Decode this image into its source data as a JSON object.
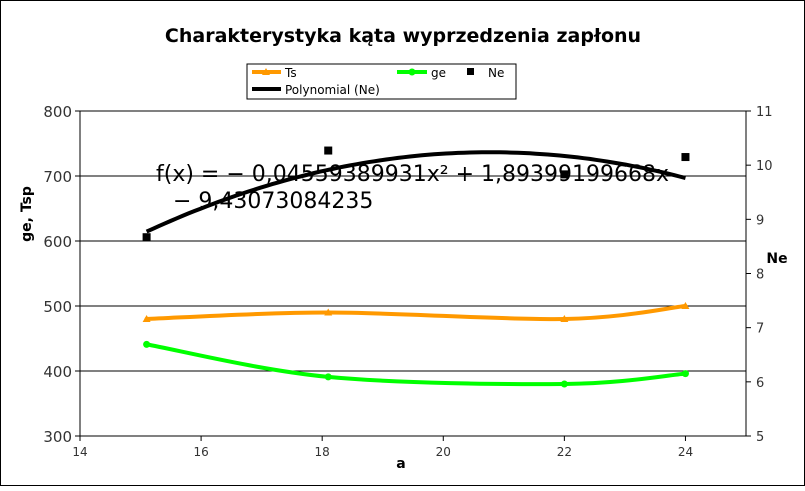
{
  "chart_data": {
    "type": "line",
    "title": "Charakterystyka kąta wyprzedzenia zapłonu",
    "xlabel": "a",
    "ylabel_left": "ge, Tsp",
    "ylabel_right": "Ne",
    "xlim": [
      14,
      25
    ],
    "ylim_left": [
      300,
      800
    ],
    "ylim_right": [
      5,
      11
    ],
    "x_ticks": [
      "14",
      "16",
      "18",
      "20",
      "22",
      "24"
    ],
    "y_left_ticks": [
      "300",
      "400",
      "500",
      "600",
      "700",
      "800"
    ],
    "y_right_ticks": [
      "5",
      "6",
      "7",
      "8",
      "9",
      "10",
      "11"
    ],
    "grid": "horizontal",
    "legend_position": "top",
    "series": [
      {
        "name": "Ts",
        "axis": "left",
        "color": "#ff9900",
        "marker": "triangle",
        "x": [
          15.1,
          18.1,
          22,
          24
        ],
        "y": [
          480,
          490,
          480,
          500
        ]
      },
      {
        "name": "ge",
        "axis": "left",
        "color": "#00ff00",
        "marker": "circle",
        "x": [
          15.1,
          18.1,
          22,
          24
        ],
        "y": [
          441,
          391,
          380,
          396
        ]
      },
      {
        "name": "Ne",
        "axis": "right",
        "color": "#000000",
        "marker": "square",
        "x": [
          15.1,
          18.1,
          22,
          24
        ],
        "y": [
          8.67,
          10.27,
          9.83,
          10.15
        ]
      }
    ],
    "trendline": {
      "name": "Polynomial (Ne)",
      "color": "#000000",
      "axis": "right",
      "coefficients": [
        -0.04559389931,
        1.89399199668,
        -9.43073084235
      ],
      "x_range": [
        15.1,
        24
      ],
      "equation_line1": "f(x) = − 0,04559389931x² + 1,89399199668x",
      "equation_line2": "− 9,43073084235"
    }
  }
}
